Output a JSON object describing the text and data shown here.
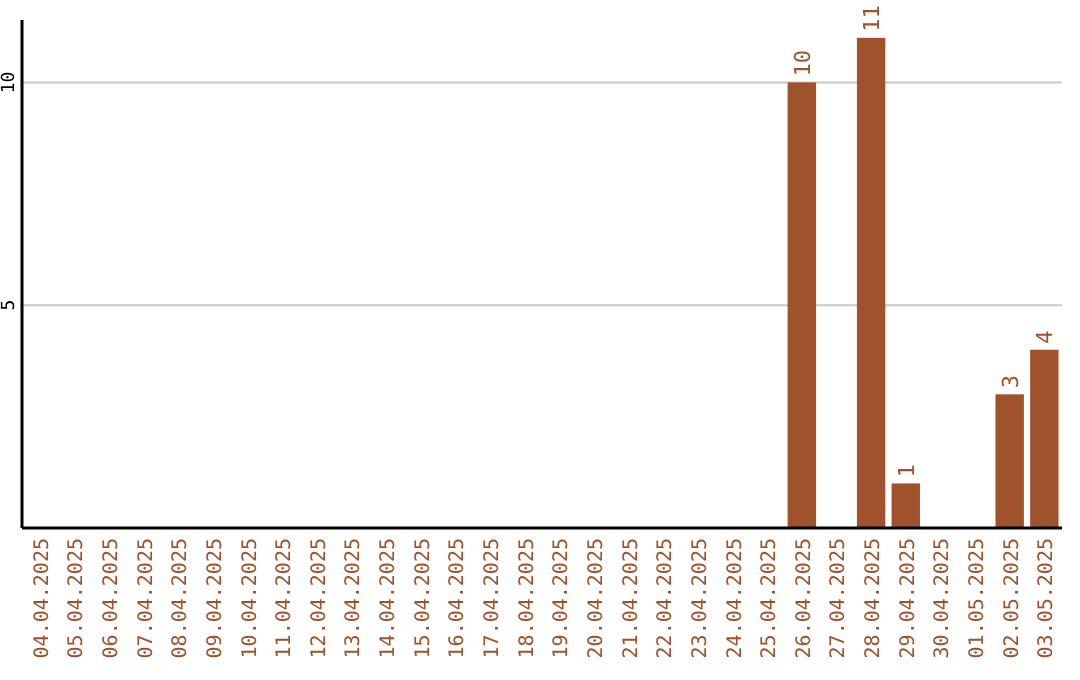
{
  "chart_data": {
    "type": "bar",
    "categories": [
      "04.04.2025",
      "05.04.2025",
      "06.04.2025",
      "07.04.2025",
      "08.04.2025",
      "09.04.2025",
      "10.04.2025",
      "11.04.2025",
      "12.04.2025",
      "13.04.2025",
      "14.04.2025",
      "15.04.2025",
      "16.04.2025",
      "17.04.2025",
      "18.04.2025",
      "19.04.2025",
      "20.04.2025",
      "21.04.2025",
      "22.04.2025",
      "23.04.2025",
      "24.04.2025",
      "25.04.2025",
      "26.04.2025",
      "27.04.2025",
      "28.04.2025",
      "29.04.2025",
      "30.04.2025",
      "01.05.2025",
      "02.05.2025",
      "03.05.2025"
    ],
    "values": [
      0,
      0,
      0,
      0,
      0,
      0,
      0,
      0,
      0,
      0,
      0,
      0,
      0,
      0,
      0,
      0,
      0,
      0,
      0,
      0,
      0,
      0,
      10,
      0,
      11,
      1,
      0,
      0,
      3,
      4
    ],
    "value_labels": [
      null,
      null,
      null,
      null,
      null,
      null,
      null,
      null,
      null,
      null,
      null,
      null,
      null,
      null,
      null,
      null,
      null,
      null,
      null,
      null,
      null,
      null,
      "10",
      null,
      "11",
      "1",
      null,
      null,
      "3",
      "4"
    ],
    "color": "#a0522d",
    "ylim": [
      0,
      11.4
    ],
    "yticks": [
      5,
      10
    ],
    "grid": "y"
  }
}
